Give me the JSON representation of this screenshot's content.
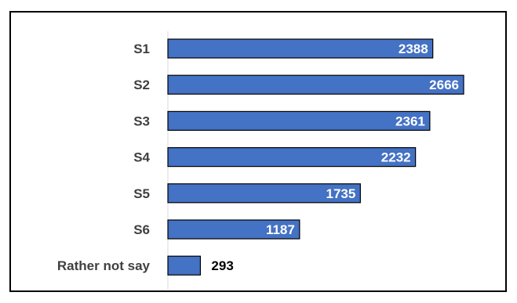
{
  "chart_data": {
    "type": "bar",
    "orientation": "horizontal",
    "categories": [
      "S1",
      "S2",
      "S3",
      "S4",
      "S5",
      "S6",
      "Rather not say"
    ],
    "values": [
      2388,
      2666,
      2361,
      2232,
      1735,
      1187,
      293
    ],
    "title": "",
    "xlabel": "",
    "ylabel": "",
    "xlim": [
      0,
      3000
    ],
    "grid": false,
    "legend": "none",
    "colors": {
      "bar_fill": "#4472C4",
      "bar_stroke": "#000000",
      "axis": "#D9D9D9",
      "category_text": "#404040",
      "frame": "#000000"
    }
  }
}
